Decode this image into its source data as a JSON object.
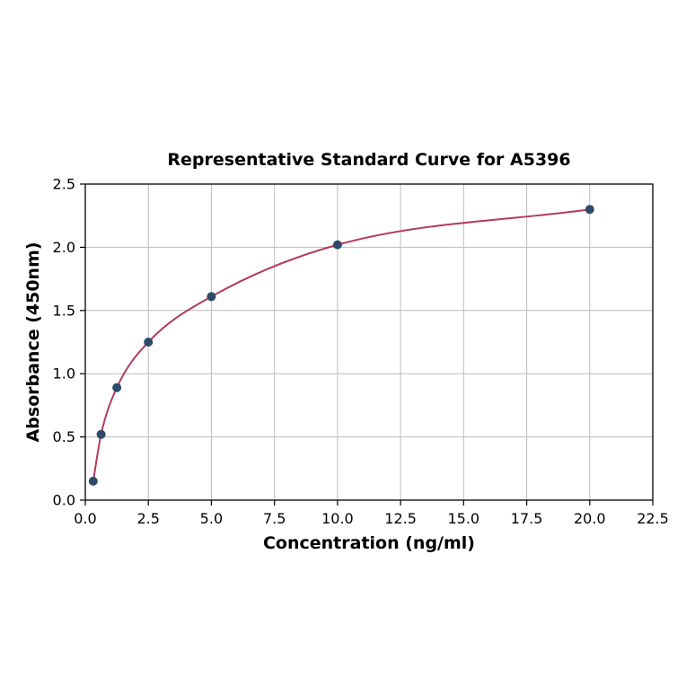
{
  "page": {
    "background": "#ffffff"
  },
  "chart_data": {
    "type": "line",
    "title": "Representative Standard Curve for A5396",
    "xlabel": "Concentration (ng/ml)",
    "ylabel": "Absorbance (450nm)",
    "x": [
      0.3125,
      0.625,
      1.25,
      2.5,
      5,
      10,
      20
    ],
    "y": [
      0.15,
      0.52,
      0.89,
      1.25,
      1.61,
      2.02,
      2.3
    ],
    "xlim": [
      0,
      22.5
    ],
    "ylim": [
      0,
      2.5
    ],
    "xticks": [
      0,
      2.5,
      5,
      7.5,
      10,
      12.5,
      15,
      17.5,
      20,
      22.5
    ],
    "xtick_labels": [
      "0.0",
      "2.5",
      "5.0",
      "7.5",
      "10.0",
      "12.5",
      "15.0",
      "17.5",
      "20.0",
      "22.5"
    ],
    "yticks": [
      0,
      0.5,
      1,
      1.5,
      2,
      2.5
    ],
    "ytick_labels": [
      "0.0",
      "0.5",
      "1.0",
      "1.5",
      "2.0",
      "2.5"
    ],
    "grid": true,
    "legend": false,
    "marker": "circle",
    "colors": {
      "curve": "#b23a60",
      "marker": "#2e4a6b",
      "grid": "#bcbcbc",
      "axis": "#000000",
      "text": "#000000",
      "background": "#ffffff"
    }
  }
}
